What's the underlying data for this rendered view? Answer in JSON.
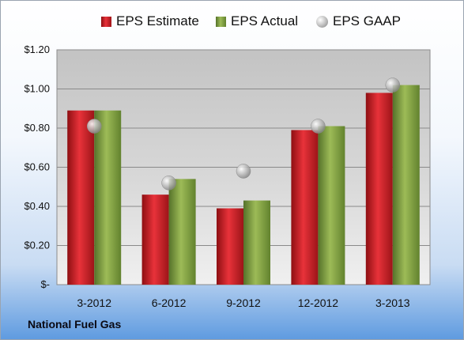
{
  "company": "National Fuel Gas",
  "chart_data": {
    "type": "bar",
    "categories": [
      "3-2012",
      "6-2012",
      "9-2012",
      "12-2012",
      "3-2013"
    ],
    "series": [
      {
        "name": "EPS Estimate",
        "kind": "bar",
        "color": "#c0161c",
        "values": [
          0.89,
          0.46,
          0.39,
          0.79,
          0.98
        ]
      },
      {
        "name": "EPS Actual",
        "kind": "bar",
        "color": "#7a9a3a",
        "values": [
          0.89,
          0.54,
          0.43,
          0.81,
          1.02
        ]
      },
      {
        "name": "EPS GAAP",
        "kind": "marker",
        "color": "#b0b0b0",
        "values": [
          0.81,
          0.52,
          0.58,
          0.81,
          1.02
        ]
      }
    ],
    "ylim": [
      0,
      1.2
    ],
    "yticks": [
      0,
      0.2,
      0.4,
      0.6,
      0.8,
      1.0,
      1.2
    ],
    "ytick_labels": [
      "$-",
      "$0.20",
      "$0.40",
      "$0.60",
      "$0.80",
      "$1.00",
      "$1.20"
    ],
    "grid": true,
    "legend_position": "top"
  }
}
